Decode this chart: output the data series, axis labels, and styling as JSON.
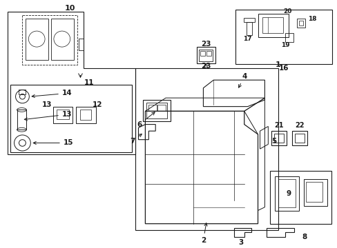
{
  "bg_color": "#ffffff",
  "line_color": "#1a1a1a",
  "fig_width": 4.89,
  "fig_height": 3.6,
  "dpi": 100,
  "lw": 0.8
}
